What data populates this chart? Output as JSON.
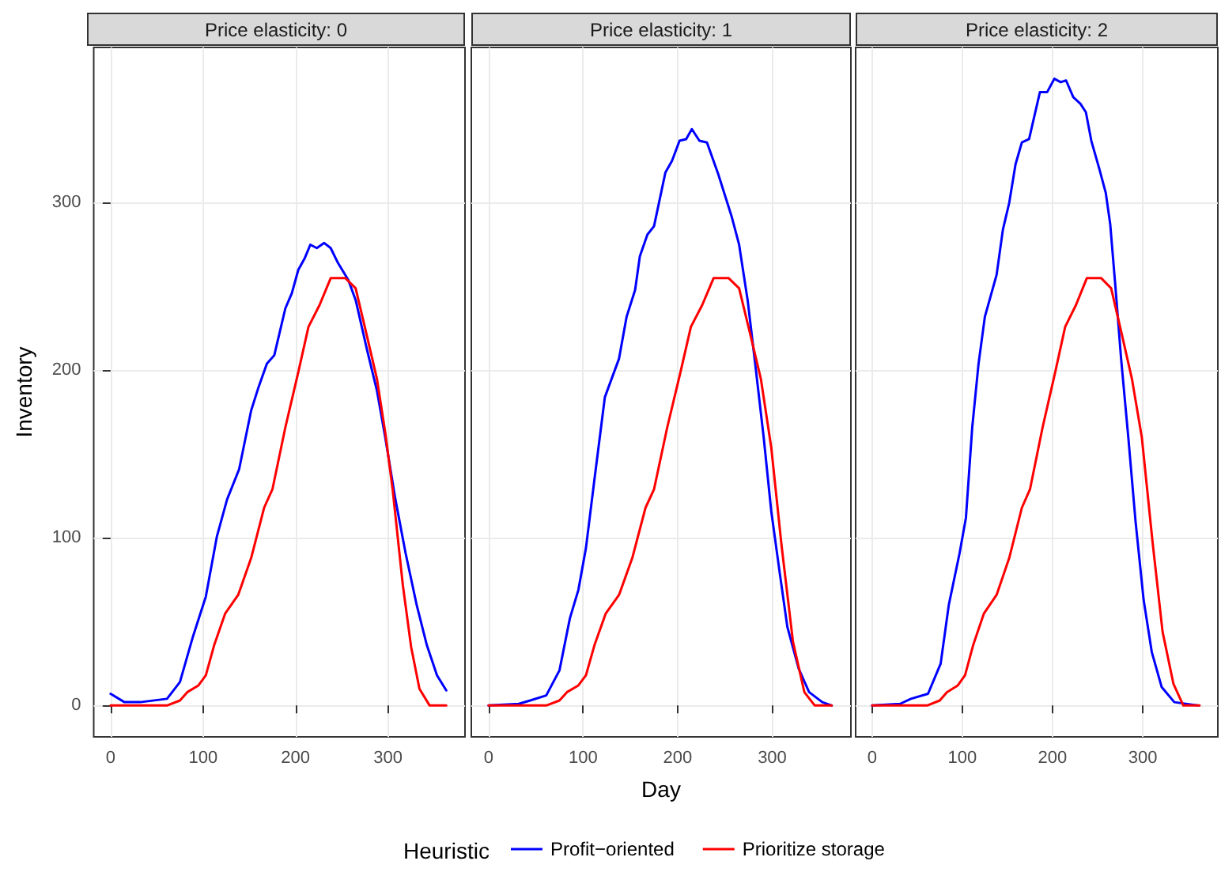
{
  "chart_data": [
    {
      "type": "line",
      "title": "Price elasticity: 0",
      "ylabel": "Inventory",
      "xlim": [
        -18.25,
        383.25
      ],
      "xticks": [
        0,
        100,
        200,
        300
      ],
      "ylim": [
        -18.7,
        392.7
      ],
      "yticks": [
        0,
        100,
        200,
        300
      ],
      "grid": true,
      "series": [
        {
          "color": "#0000ff",
          "x": [
            0,
            15,
            32,
            61,
            75,
            89,
            103,
            115,
            126,
            139,
            152,
            160,
            169,
            177,
            189,
            196,
            203,
            210,
            216,
            223,
            231,
            238,
            246,
            257,
            265,
            277,
            288,
            297,
            308,
            319,
            331,
            342,
            353,
            363
          ],
          "values": [
            7,
            2,
            2,
            4,
            14,
            41,
            65,
            101,
            123,
            141,
            176,
            190,
            204,
            209,
            237,
            246,
            260,
            267,
            275,
            273,
            276,
            273,
            264,
            254,
            242,
            213,
            188,
            160,
            123,
            91,
            60,
            36,
            18,
            9
          ]
        },
        {
          "color": "#ff0000",
          "x": [
            0,
            61,
            75,
            83,
            95,
            103,
            112,
            124,
            138,
            152,
            166,
            175,
            189,
            203,
            214,
            226,
            238,
            254,
            265,
            277,
            288,
            297,
            305,
            316,
            325,
            334,
            345,
            363
          ],
          "values": [
            0,
            0,
            3,
            8,
            12,
            18,
            36,
            55,
            66,
            88,
            118,
            129,
            166,
            199,
            226,
            239,
            255,
            255,
            249,
            221,
            195,
            163,
            129,
            72,
            35,
            10,
            0,
            0
          ]
        }
      ]
    },
    {
      "type": "line",
      "title": "Price elasticity: 1",
      "xlabel": "Day",
      "legend_title": "Heuristic",
      "legend": "bottom",
      "tick_labels": "x",
      "xlim": [
        -18.25,
        383.25
      ],
      "xticks": [
        0,
        100,
        200,
        300
      ],
      "ylim": [
        -18.7,
        392.7
      ],
      "yticks": [
        0,
        100,
        200,
        300
      ],
      "grid": true,
      "series": [
        {
          "name": "Profit−oriented",
          "color": "#0000ff",
          "x": [
            0,
            32,
            44,
            61,
            75,
            86,
            95,
            103,
            112,
            123,
            138,
            146,
            155,
            160,
            168,
            175,
            187,
            194,
            202,
            209,
            215,
            223,
            231,
            243,
            257,
            265,
            274,
            282,
            291,
            299,
            308,
            316,
            328,
            339,
            353,
            363
          ],
          "values": [
            0,
            1,
            3,
            6,
            21,
            52,
            69,
            94,
            135,
            184,
            207,
            232,
            248,
            268,
            281,
            286,
            318,
            325,
            337,
            338,
            344,
            337,
            336,
            317,
            292,
            275,
            242,
            204,
            160,
            116,
            79,
            47,
            22,
            8,
            2,
            0
          ]
        },
        {
          "name": "Prioritize storage",
          "color": "#ff0000",
          "x": [
            0,
            61,
            75,
            83,
            95,
            103,
            112,
            124,
            138,
            152,
            166,
            175,
            189,
            203,
            214,
            226,
            238,
            254,
            265,
            277,
            288,
            299,
            310,
            322,
            334,
            345,
            363
          ],
          "values": [
            0,
            0,
            3,
            8,
            12,
            18,
            36,
            55,
            66,
            88,
            118,
            129,
            166,
            199,
            226,
            239,
            255,
            255,
            249,
            221,
            195,
            154,
            95,
            38,
            8,
            0,
            0
          ]
        }
      ]
    },
    {
      "type": "line",
      "title": "Price elasticity: 2",
      "tick_labels": "x",
      "xlim": [
        -18.25,
        383.25
      ],
      "xticks": [
        0,
        100,
        200,
        300
      ],
      "ylim": [
        -18.7,
        392.7
      ],
      "yticks": [
        0,
        100,
        200,
        300
      ],
      "grid": true,
      "series": [
        {
          "color": "#0000ff",
          "x": [
            0,
            31,
            43,
            62,
            76,
            85,
            97,
            104,
            111,
            118,
            125,
            138,
            145,
            152,
            159,
            166,
            174,
            186,
            194,
            202,
            209,
            215,
            223,
            231,
            237,
            243,
            252,
            259,
            264,
            270,
            276,
            284,
            292,
            301,
            310,
            321,
            335,
            362
          ],
          "values": [
            0,
            1,
            4,
            7,
            25,
            60,
            91,
            112,
            166,
            204,
            232,
            257,
            284,
            300,
            323,
            336,
            338,
            366,
            366,
            374,
            372,
            373,
            363,
            359,
            354,
            337,
            320,
            306,
            287,
            248,
            207,
            160,
            110,
            63,
            32,
            11,
            2,
            0
          ]
        },
        {
          "color": "#ff0000",
          "x": [
            0,
            61,
            75,
            83,
            95,
            103,
            112,
            124,
            138,
            152,
            166,
            175,
            189,
            203,
            214,
            226,
            238,
            254,
            265,
            277,
            288,
            299,
            311,
            322,
            334,
            345,
            363
          ],
          "values": [
            0,
            0,
            3,
            8,
            12,
            18,
            36,
            55,
            66,
            88,
            118,
            129,
            166,
            199,
            226,
            239,
            255,
            255,
            249,
            221,
            195,
            160,
            97,
            44,
            13,
            0,
            0
          ]
        }
      ]
    }
  ]
}
